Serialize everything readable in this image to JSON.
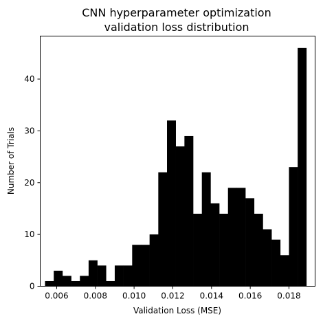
{
  "chart_data": {
    "type": "bar",
    "title_lines": [
      "CNN hyperparameter optimization",
      "validation loss distribution"
    ],
    "xlabel": "Validation Loss (MSE)",
    "ylabel": "Number of Trials",
    "xlim": [
      0.00515,
      0.01935
    ],
    "ylim": [
      0,
      48.3
    ],
    "xticks": [
      0.006,
      0.008,
      0.01,
      0.012,
      0.014,
      0.016,
      0.018
    ],
    "xtick_labels": [
      "0.006",
      "0.008",
      "0.010",
      "0.012",
      "0.014",
      "0.016",
      "0.018"
    ],
    "yticks": [
      0,
      10,
      20,
      30,
      40
    ],
    "ytick_labels": [
      "0",
      "10",
      "20",
      "30",
      "40"
    ],
    "bin_range": [
      0.0054,
      0.0189
    ],
    "bin_count": 30,
    "counts": [
      1,
      3,
      2,
      1,
      2,
      5,
      4,
      1,
      4,
      4,
      8,
      8,
      10,
      22,
      32,
      27,
      29,
      14,
      22,
      16,
      14,
      19,
      19,
      17,
      14,
      11,
      9,
      6,
      23,
      46
    ],
    "bar_color": "#000000",
    "grid": false,
    "legend": false
  }
}
